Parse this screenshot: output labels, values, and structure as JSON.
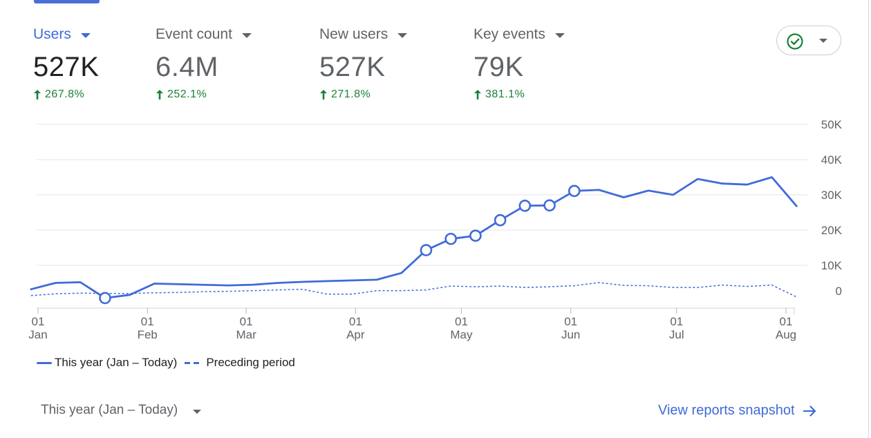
{
  "metrics": [
    {
      "label": "Users",
      "value": "527K",
      "change": "267.8%",
      "active": true
    },
    {
      "label": "Event count",
      "value": "6.4M",
      "change": "252.1%",
      "active": false
    },
    {
      "label": "New users",
      "value": "527K",
      "change": "271.8%",
      "active": false
    },
    {
      "label": "Key events",
      "value": "79K",
      "change": "381.1%",
      "active": false
    }
  ],
  "status_icon": "check-circle-icon",
  "colors": {
    "accent": "#3f6ad8",
    "positive": "#188038",
    "grid": "#e3e5e8",
    "text_muted": "#5f6368"
  },
  "chart_data": {
    "type": "line",
    "x_axis": {
      "range": [
        "2025-01-01",
        "2025-08-01"
      ],
      "ticks": [
        {
          "date": "2025-01-01",
          "day": "01",
          "month": "Jan"
        },
        {
          "date": "2025-02-01",
          "day": "01",
          "month": "Feb"
        },
        {
          "date": "2025-03-01",
          "day": "01",
          "month": "Mar"
        },
        {
          "date": "2025-04-01",
          "day": "01",
          "month": "Apr"
        },
        {
          "date": "2025-05-01",
          "day": "01",
          "month": "May"
        },
        {
          "date": "2025-06-01",
          "day": "01",
          "month": "Jun"
        },
        {
          "date": "2025-07-01",
          "day": "01",
          "month": "Jul"
        },
        {
          "date": "2025-08-01",
          "day": "01",
          "month": "Aug"
        }
      ]
    },
    "y_axis": {
      "ylim": [
        0,
        50000
      ],
      "ticks": [
        0,
        10000,
        20000,
        30000,
        40000,
        50000
      ],
      "tick_labels": [
        "0",
        "10K",
        "20K",
        "30K",
        "40K",
        "50K"
      ],
      "position": "right"
    },
    "grid": true,
    "legend_position": "bottom-left",
    "series": [
      {
        "name": "This year (Jan – Today)",
        "style": "solid",
        "color": "#3f6ad8",
        "points": [
          {
            "date": "2024-12-30",
            "value": 3200
          },
          {
            "date": "2025-01-06",
            "value": 5000
          },
          {
            "date": "2025-01-13",
            "value": 5200
          },
          {
            "date": "2025-01-20",
            "value": 700,
            "marker": true
          },
          {
            "date": "2025-01-27",
            "value": 1600
          },
          {
            "date": "2025-02-03",
            "value": 4800
          },
          {
            "date": "2025-02-24",
            "value": 4300
          },
          {
            "date": "2025-03-03",
            "value": 4500
          },
          {
            "date": "2025-03-10",
            "value": 5000
          },
          {
            "date": "2025-03-17",
            "value": 5300
          },
          {
            "date": "2025-03-24",
            "value": 5500
          },
          {
            "date": "2025-03-31",
            "value": 5700
          },
          {
            "date": "2025-04-07",
            "value": 5900
          },
          {
            "date": "2025-04-14",
            "value": 7800
          },
          {
            "date": "2025-04-21",
            "value": 14300,
            "marker": true
          },
          {
            "date": "2025-04-28",
            "value": 17500,
            "marker": true
          },
          {
            "date": "2025-05-05",
            "value": 18400,
            "marker": true
          },
          {
            "date": "2025-05-12",
            "value": 22800,
            "marker": true
          },
          {
            "date": "2025-05-19",
            "value": 26900,
            "marker": true
          },
          {
            "date": "2025-05-26",
            "value": 27000,
            "marker": true
          },
          {
            "date": "2025-06-02",
            "value": 31100,
            "marker": true
          },
          {
            "date": "2025-06-09",
            "value": 31400
          },
          {
            "date": "2025-06-16",
            "value": 29300
          },
          {
            "date": "2025-06-23",
            "value": 31200
          },
          {
            "date": "2025-06-30",
            "value": 30000
          },
          {
            "date": "2025-07-07",
            "value": 34500
          },
          {
            "date": "2025-07-14",
            "value": 33200
          },
          {
            "date": "2025-07-21",
            "value": 32900
          },
          {
            "date": "2025-07-28",
            "value": 35000
          },
          {
            "date": "2025-08-04",
            "value": 26800
          }
        ]
      },
      {
        "name": "Preceding period",
        "style": "dashed",
        "color": "#3f6ad8",
        "points": [
          {
            "date": "2024-12-30",
            "value": 1400
          },
          {
            "date": "2025-01-06",
            "value": 1900
          },
          {
            "date": "2025-01-13",
            "value": 2100
          },
          {
            "date": "2025-01-20",
            "value": 2000
          },
          {
            "date": "2025-01-27",
            "value": 2000
          },
          {
            "date": "2025-02-03",
            "value": 2200
          },
          {
            "date": "2025-02-10",
            "value": 2300
          },
          {
            "date": "2025-02-17",
            "value": 2500
          },
          {
            "date": "2025-02-24",
            "value": 2600
          },
          {
            "date": "2025-03-03",
            "value": 2800
          },
          {
            "date": "2025-03-10",
            "value": 3000
          },
          {
            "date": "2025-03-17",
            "value": 3200
          },
          {
            "date": "2025-03-24",
            "value": 1800
          },
          {
            "date": "2025-03-31",
            "value": 1800
          },
          {
            "date": "2025-04-07",
            "value": 2800
          },
          {
            "date": "2025-04-14",
            "value": 2800
          },
          {
            "date": "2025-04-21",
            "value": 3000
          },
          {
            "date": "2025-04-28",
            "value": 4100
          },
          {
            "date": "2025-05-05",
            "value": 3900
          },
          {
            "date": "2025-05-12",
            "value": 4100
          },
          {
            "date": "2025-05-19",
            "value": 3700
          },
          {
            "date": "2025-05-26",
            "value": 3900
          },
          {
            "date": "2025-06-02",
            "value": 4200
          },
          {
            "date": "2025-06-09",
            "value": 5100
          },
          {
            "date": "2025-06-16",
            "value": 4300
          },
          {
            "date": "2025-06-23",
            "value": 4200
          },
          {
            "date": "2025-06-30",
            "value": 3700
          },
          {
            "date": "2025-07-07",
            "value": 3700
          },
          {
            "date": "2025-07-14",
            "value": 4400
          },
          {
            "date": "2025-07-21",
            "value": 4000
          },
          {
            "date": "2025-07-28",
            "value": 4400
          },
          {
            "date": "2025-08-04",
            "value": 1000
          }
        ]
      }
    ]
  },
  "legend": {
    "this_year": "This year (Jan – Today)",
    "preceding": "Preceding period"
  },
  "footer": {
    "date_range": "This year (Jan – Today)",
    "view_link": "View reports snapshot"
  }
}
